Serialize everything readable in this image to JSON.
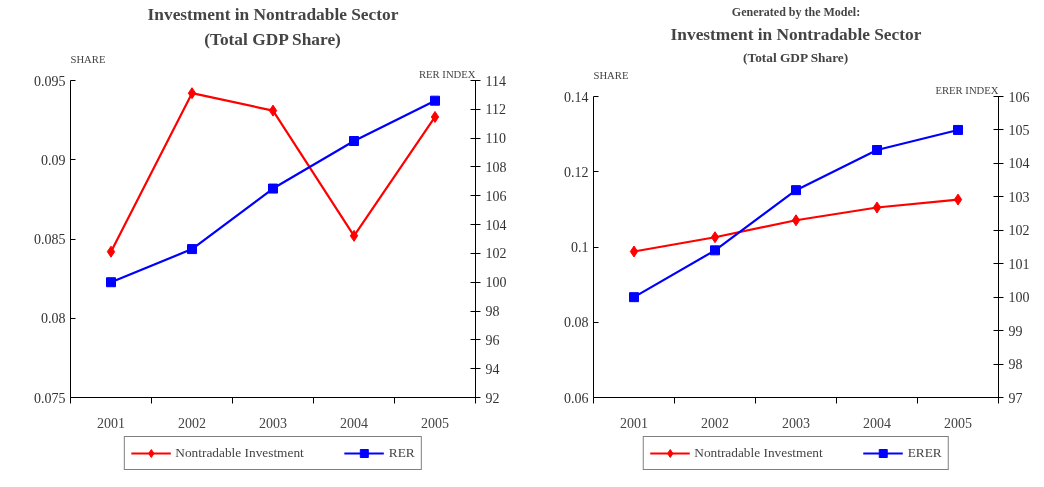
{
  "chart_data": [
    {
      "type": "line",
      "title": "Investment in Nontradable Sector",
      "subtitle": "(Total GDP Share)",
      "ylabel": "SHARE",
      "y2label": "RER INDEX",
      "categories": [
        "2001",
        "2002",
        "2003",
        "2004",
        "2005"
      ],
      "series": [
        {
          "name": "Nontradable Investment",
          "color": "#ff0000",
          "marker": "diamond",
          "values": [
            0.0842,
            0.0942,
            0.0931,
            0.0852,
            0.0927
          ]
        },
        {
          "name": "RER",
          "color": "#0000ff",
          "marker": "square",
          "axis": "y2",
          "values": [
            100.0,
            102.3,
            106.5,
            109.8,
            112.6
          ]
        }
      ],
      "ylim": [
        0.075,
        0.095
      ],
      "yticks": [
        0.075,
        0.08,
        0.085,
        0.09,
        0.095
      ],
      "y2lim": [
        92,
        114
      ],
      "y2ticks": [
        92,
        94,
        96,
        98,
        100,
        102,
        104,
        106,
        108,
        110,
        112,
        114
      ],
      "grid": false,
      "legend": "bottom"
    },
    {
      "type": "line",
      "title": "Investment in Nontradable Sector",
      "subtitle": "(Total GDP Share)",
      "annotations": [
        "Generated by the Model:"
      ],
      "ylabel": "SHARE",
      "y2label": "ERER INDEX",
      "categories": [
        "2001",
        "2002",
        "2003",
        "2004",
        "2005"
      ],
      "series": [
        {
          "name": "Nontradable Investment",
          "color": "#ff0000",
          "marker": "diamond",
          "values": [
            0.0988,
            0.1026,
            0.1071,
            0.1105,
            0.1126
          ]
        },
        {
          "name": "ERER",
          "color": "#0000ff",
          "marker": "square",
          "axis": "y2",
          "values": [
            100.0,
            101.4,
            103.2,
            104.4,
            105.0
          ]
        }
      ],
      "ylim": [
        0.06,
        0.14
      ],
      "yticks": [
        0.06,
        0.08,
        0.1,
        0.12,
        0.14
      ],
      "y2lim": [
        97,
        106
      ],
      "y2ticks": [
        97,
        98,
        99,
        100,
        101,
        102,
        103,
        104,
        105,
        106
      ],
      "grid": false,
      "legend": "bottom"
    }
  ]
}
